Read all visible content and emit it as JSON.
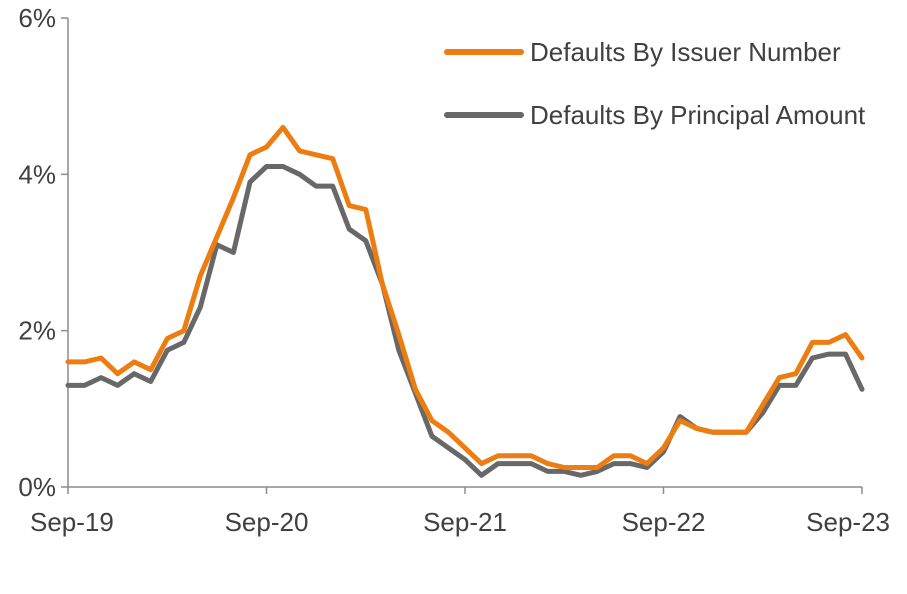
{
  "chart_data": {
    "type": "line",
    "title": "",
    "xlabel": "",
    "ylabel": "",
    "ylim": [
      0,
      6
    ],
    "y_ticks": [
      0,
      2,
      4,
      6
    ],
    "y_tick_labels": [
      "0%",
      "2%",
      "4%",
      "6%"
    ],
    "x_ticks": [
      "2019-09",
      "2020-09",
      "2021-09",
      "2022-09",
      "2023-09"
    ],
    "x_tick_labels": [
      "Sep-19",
      "Sep-20",
      "Sep-21",
      "Sep-22",
      "Sep-23"
    ],
    "xlim": [
      "2019-09",
      "2023-09"
    ],
    "grid": false,
    "legend_position": "top-right",
    "series": [
      {
        "name": "Defaults By Issuer Number",
        "color": "#EE7D11",
        "points": [
          [
            "2019-09",
            1.6
          ],
          [
            "2019-10",
            1.6
          ],
          [
            "2019-11",
            1.65
          ],
          [
            "2019-12",
            1.45
          ],
          [
            "2020-01",
            1.6
          ],
          [
            "2020-02",
            1.5
          ],
          [
            "2020-03",
            1.9
          ],
          [
            "2020-04",
            2.0
          ],
          [
            "2020-05",
            2.7
          ],
          [
            "2020-06",
            3.2
          ],
          [
            "2020-07",
            3.7
          ],
          [
            "2020-08",
            4.25
          ],
          [
            "2020-09",
            4.35
          ],
          [
            "2020-10",
            4.6
          ],
          [
            "2020-11",
            4.3
          ],
          [
            "2020-12",
            4.25
          ],
          [
            "2021-01",
            4.2
          ],
          [
            "2021-02",
            3.6
          ],
          [
            "2021-03",
            3.55
          ],
          [
            "2021-04",
            2.6
          ],
          [
            "2021-05",
            1.95
          ],
          [
            "2021-06",
            1.25
          ],
          [
            "2021-07",
            0.85
          ],
          [
            "2021-08",
            0.7
          ],
          [
            "2021-09",
            0.5
          ],
          [
            "2021-10",
            0.3
          ],
          [
            "2021-11",
            0.4
          ],
          [
            "2021-12",
            0.4
          ],
          [
            "2022-01",
            0.4
          ],
          [
            "2022-02",
            0.3
          ],
          [
            "2022-03",
            0.25
          ],
          [
            "2022-04",
            0.25
          ],
          [
            "2022-05",
            0.25
          ],
          [
            "2022-06",
            0.4
          ],
          [
            "2022-07",
            0.4
          ],
          [
            "2022-08",
            0.3
          ],
          [
            "2022-09",
            0.5
          ],
          [
            "2022-10",
            0.85
          ],
          [
            "2022-11",
            0.75
          ],
          [
            "2022-12",
            0.7
          ],
          [
            "2023-01",
            0.7
          ],
          [
            "2023-02",
            0.7
          ],
          [
            "2023-03",
            1.05
          ],
          [
            "2023-04",
            1.4
          ],
          [
            "2023-05",
            1.45
          ],
          [
            "2023-06",
            1.85
          ],
          [
            "2023-07",
            1.85
          ],
          [
            "2023-08",
            1.95
          ],
          [
            "2023-09",
            1.65
          ]
        ]
      },
      {
        "name": "Defaults By Principal Amount",
        "color": "#686868",
        "points": [
          [
            "2019-09",
            1.3
          ],
          [
            "2019-10",
            1.3
          ],
          [
            "2019-11",
            1.4
          ],
          [
            "2019-12",
            1.3
          ],
          [
            "2020-01",
            1.45
          ],
          [
            "2020-02",
            1.35
          ],
          [
            "2020-03",
            1.75
          ],
          [
            "2020-04",
            1.85
          ],
          [
            "2020-05",
            2.3
          ],
          [
            "2020-06",
            3.1
          ],
          [
            "2020-07",
            3.0
          ],
          [
            "2020-08",
            3.9
          ],
          [
            "2020-09",
            4.1
          ],
          [
            "2020-10",
            4.1
          ],
          [
            "2020-11",
            4.0
          ],
          [
            "2020-12",
            3.85
          ],
          [
            "2021-01",
            3.85
          ],
          [
            "2021-02",
            3.3
          ],
          [
            "2021-03",
            3.15
          ],
          [
            "2021-04",
            2.6
          ],
          [
            "2021-05",
            1.75
          ],
          [
            "2021-06",
            1.2
          ],
          [
            "2021-07",
            0.65
          ],
          [
            "2021-08",
            0.5
          ],
          [
            "2021-09",
            0.35
          ],
          [
            "2021-10",
            0.15
          ],
          [
            "2021-11",
            0.3
          ],
          [
            "2021-12",
            0.3
          ],
          [
            "2022-01",
            0.3
          ],
          [
            "2022-02",
            0.2
          ],
          [
            "2022-03",
            0.2
          ],
          [
            "2022-04",
            0.15
          ],
          [
            "2022-05",
            0.2
          ],
          [
            "2022-06",
            0.3
          ],
          [
            "2022-07",
            0.3
          ],
          [
            "2022-08",
            0.25
          ],
          [
            "2022-09",
            0.45
          ],
          [
            "2022-10",
            0.9
          ],
          [
            "2022-11",
            0.75
          ],
          [
            "2022-12",
            0.7
          ],
          [
            "2023-01",
            0.7
          ],
          [
            "2023-02",
            0.7
          ],
          [
            "2023-03",
            0.95
          ],
          [
            "2023-04",
            1.3
          ],
          [
            "2023-05",
            1.3
          ],
          [
            "2023-06",
            1.65
          ],
          [
            "2023-07",
            1.7
          ],
          [
            "2023-08",
            1.7
          ],
          [
            "2023-09",
            1.25
          ]
        ]
      }
    ]
  }
}
